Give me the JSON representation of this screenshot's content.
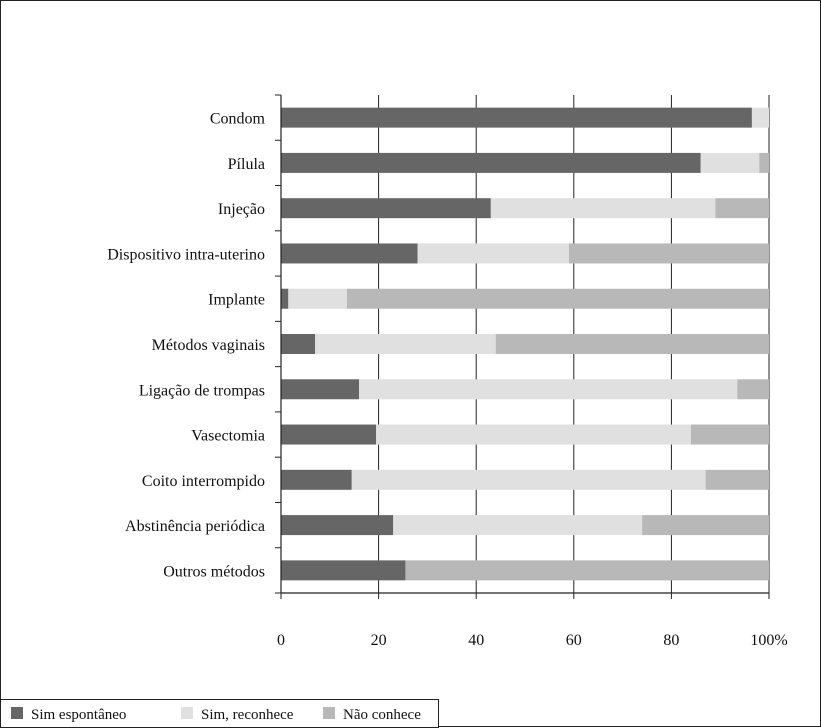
{
  "chart_data": {
    "type": "bar",
    "orientation": "horizontal",
    "stacked": true,
    "categories": [
      "Condom",
      "Pílula",
      "Injeção",
      "Dispositivo intra-uterino",
      "Implante",
      "Métodos vaginais",
      "Ligação de trompas",
      "Vasectomia",
      "Coito interrompido",
      "Abstinência periódica",
      "Outros métodos"
    ],
    "series": [
      {
        "name": "Sim espontâneo",
        "color": "#666666",
        "values": [
          96.5,
          86,
          43,
          28,
          1.5,
          7,
          16,
          19.5,
          14.5,
          23,
          25.5
        ]
      },
      {
        "name": "Sim, reconhece",
        "color": "#e0e0e0",
        "values": [
          3.5,
          12,
          46,
          31,
          12,
          37,
          77.5,
          64.5,
          72.5,
          51,
          0
        ]
      },
      {
        "name": "Não conhece",
        "color": "#b8b8b8",
        "values": [
          0,
          2,
          11,
          41,
          86.5,
          56,
          6.5,
          16,
          13,
          26,
          74.5
        ]
      }
    ],
    "xlim": [
      0,
      100
    ],
    "xticks": [
      "0",
      "20",
      "40",
      "60",
      "80",
      "100%"
    ],
    "grid": true,
    "legend_position": "bottom-left"
  }
}
